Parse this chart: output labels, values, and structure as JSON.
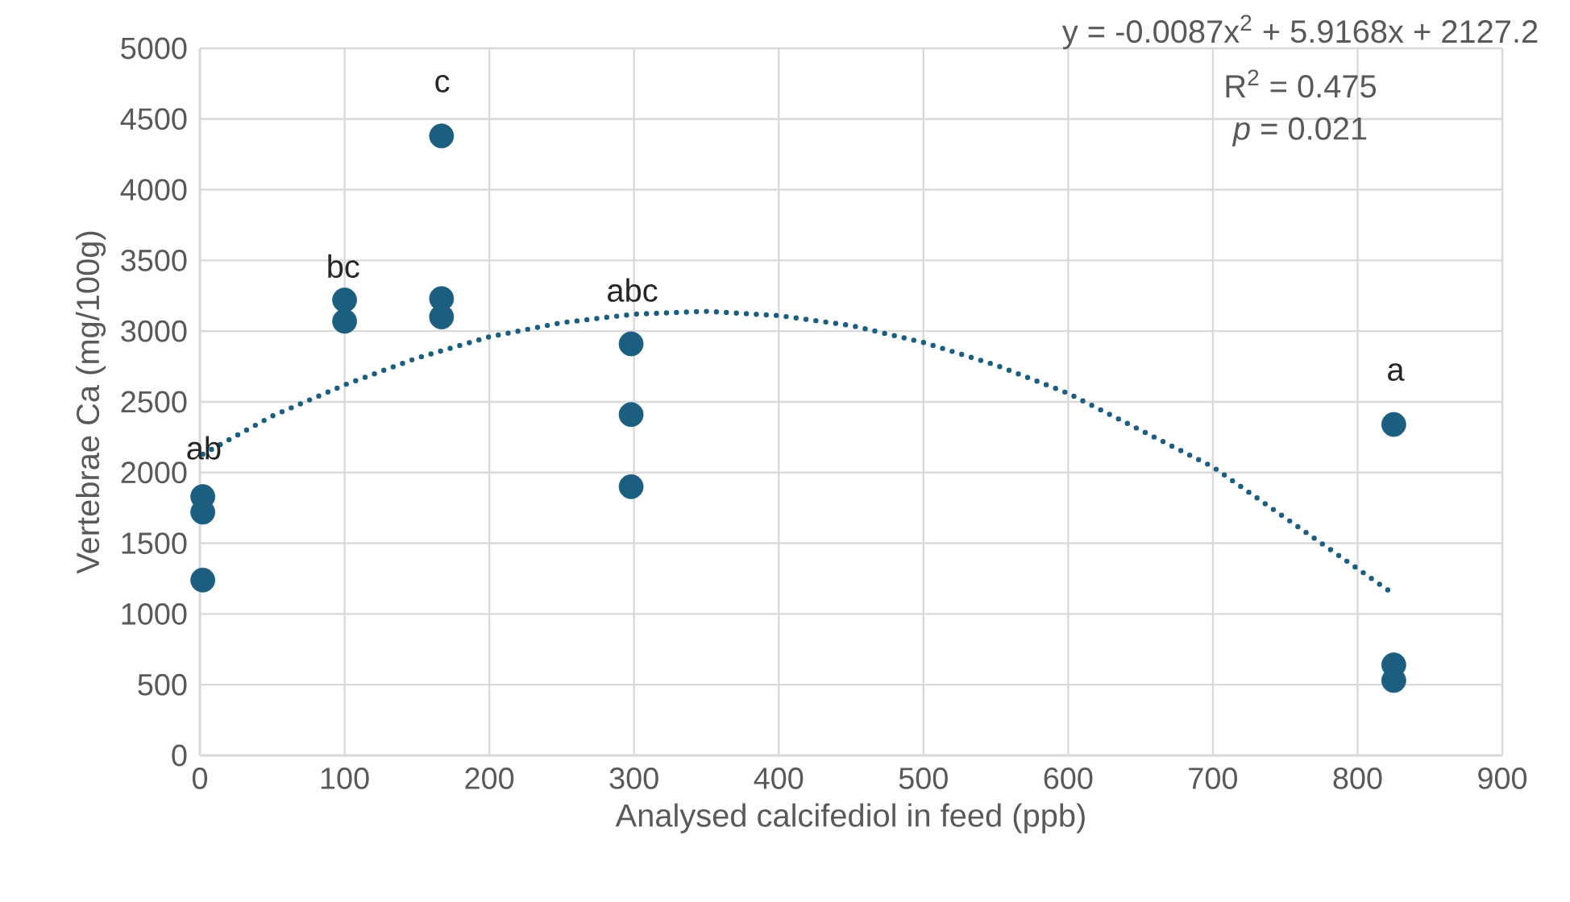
{
  "chart_data": {
    "type": "scatter",
    "xlabel": "Analysed calcifediol in feed (ppb)",
    "ylabel": "Vertebrae Ca (mg/100g)",
    "xlim": [
      0,
      900
    ],
    "xticks": [
      0,
      100,
      200,
      300,
      400,
      500,
      600,
      700,
      800,
      900
    ],
    "ylim": [
      0,
      5000
    ],
    "yticks": [
      0,
      500,
      1000,
      1500,
      2000,
      2500,
      3000,
      3500,
      4000,
      4500,
      5000
    ],
    "grid": true,
    "series": [
      {
        "marker": "circle",
        "color": "#1b5e80",
        "x": [
          2,
          2,
          2,
          100,
          100,
          167,
          167,
          167,
          298,
          298,
          298,
          825,
          825,
          825
        ],
        "values": [
          1830,
          1720,
          1240,
          3220,
          3070,
          4380,
          3230,
          3100,
          2910,
          2410,
          1900,
          2340,
          640,
          530
        ]
      },
      {
        "type": "line",
        "marker": "none",
        "line_style": "dotted",
        "color": "#1b5e80",
        "x": [
          2,
          50,
          100,
          150,
          200,
          250,
          300,
          350,
          400,
          450,
          500,
          550,
          600,
          650,
          700,
          750,
          825
        ],
        "values": [
          2130,
          2400,
          2620,
          2810,
          2960,
          3060,
          3120,
          3140,
          3110,
          3040,
          2920,
          2760,
          2560,
          2300,
          2040,
          1680,
          1140
        ]
      }
    ],
    "annotations": [
      "ab",
      "bc",
      "c",
      "abc",
      "a",
      "y = -0.0087x$^{2}$ + 5.9168x + 2127.2",
      "R$^{2}$ = 0.475",
      "*p* = 0.021"
    ]
  }
}
